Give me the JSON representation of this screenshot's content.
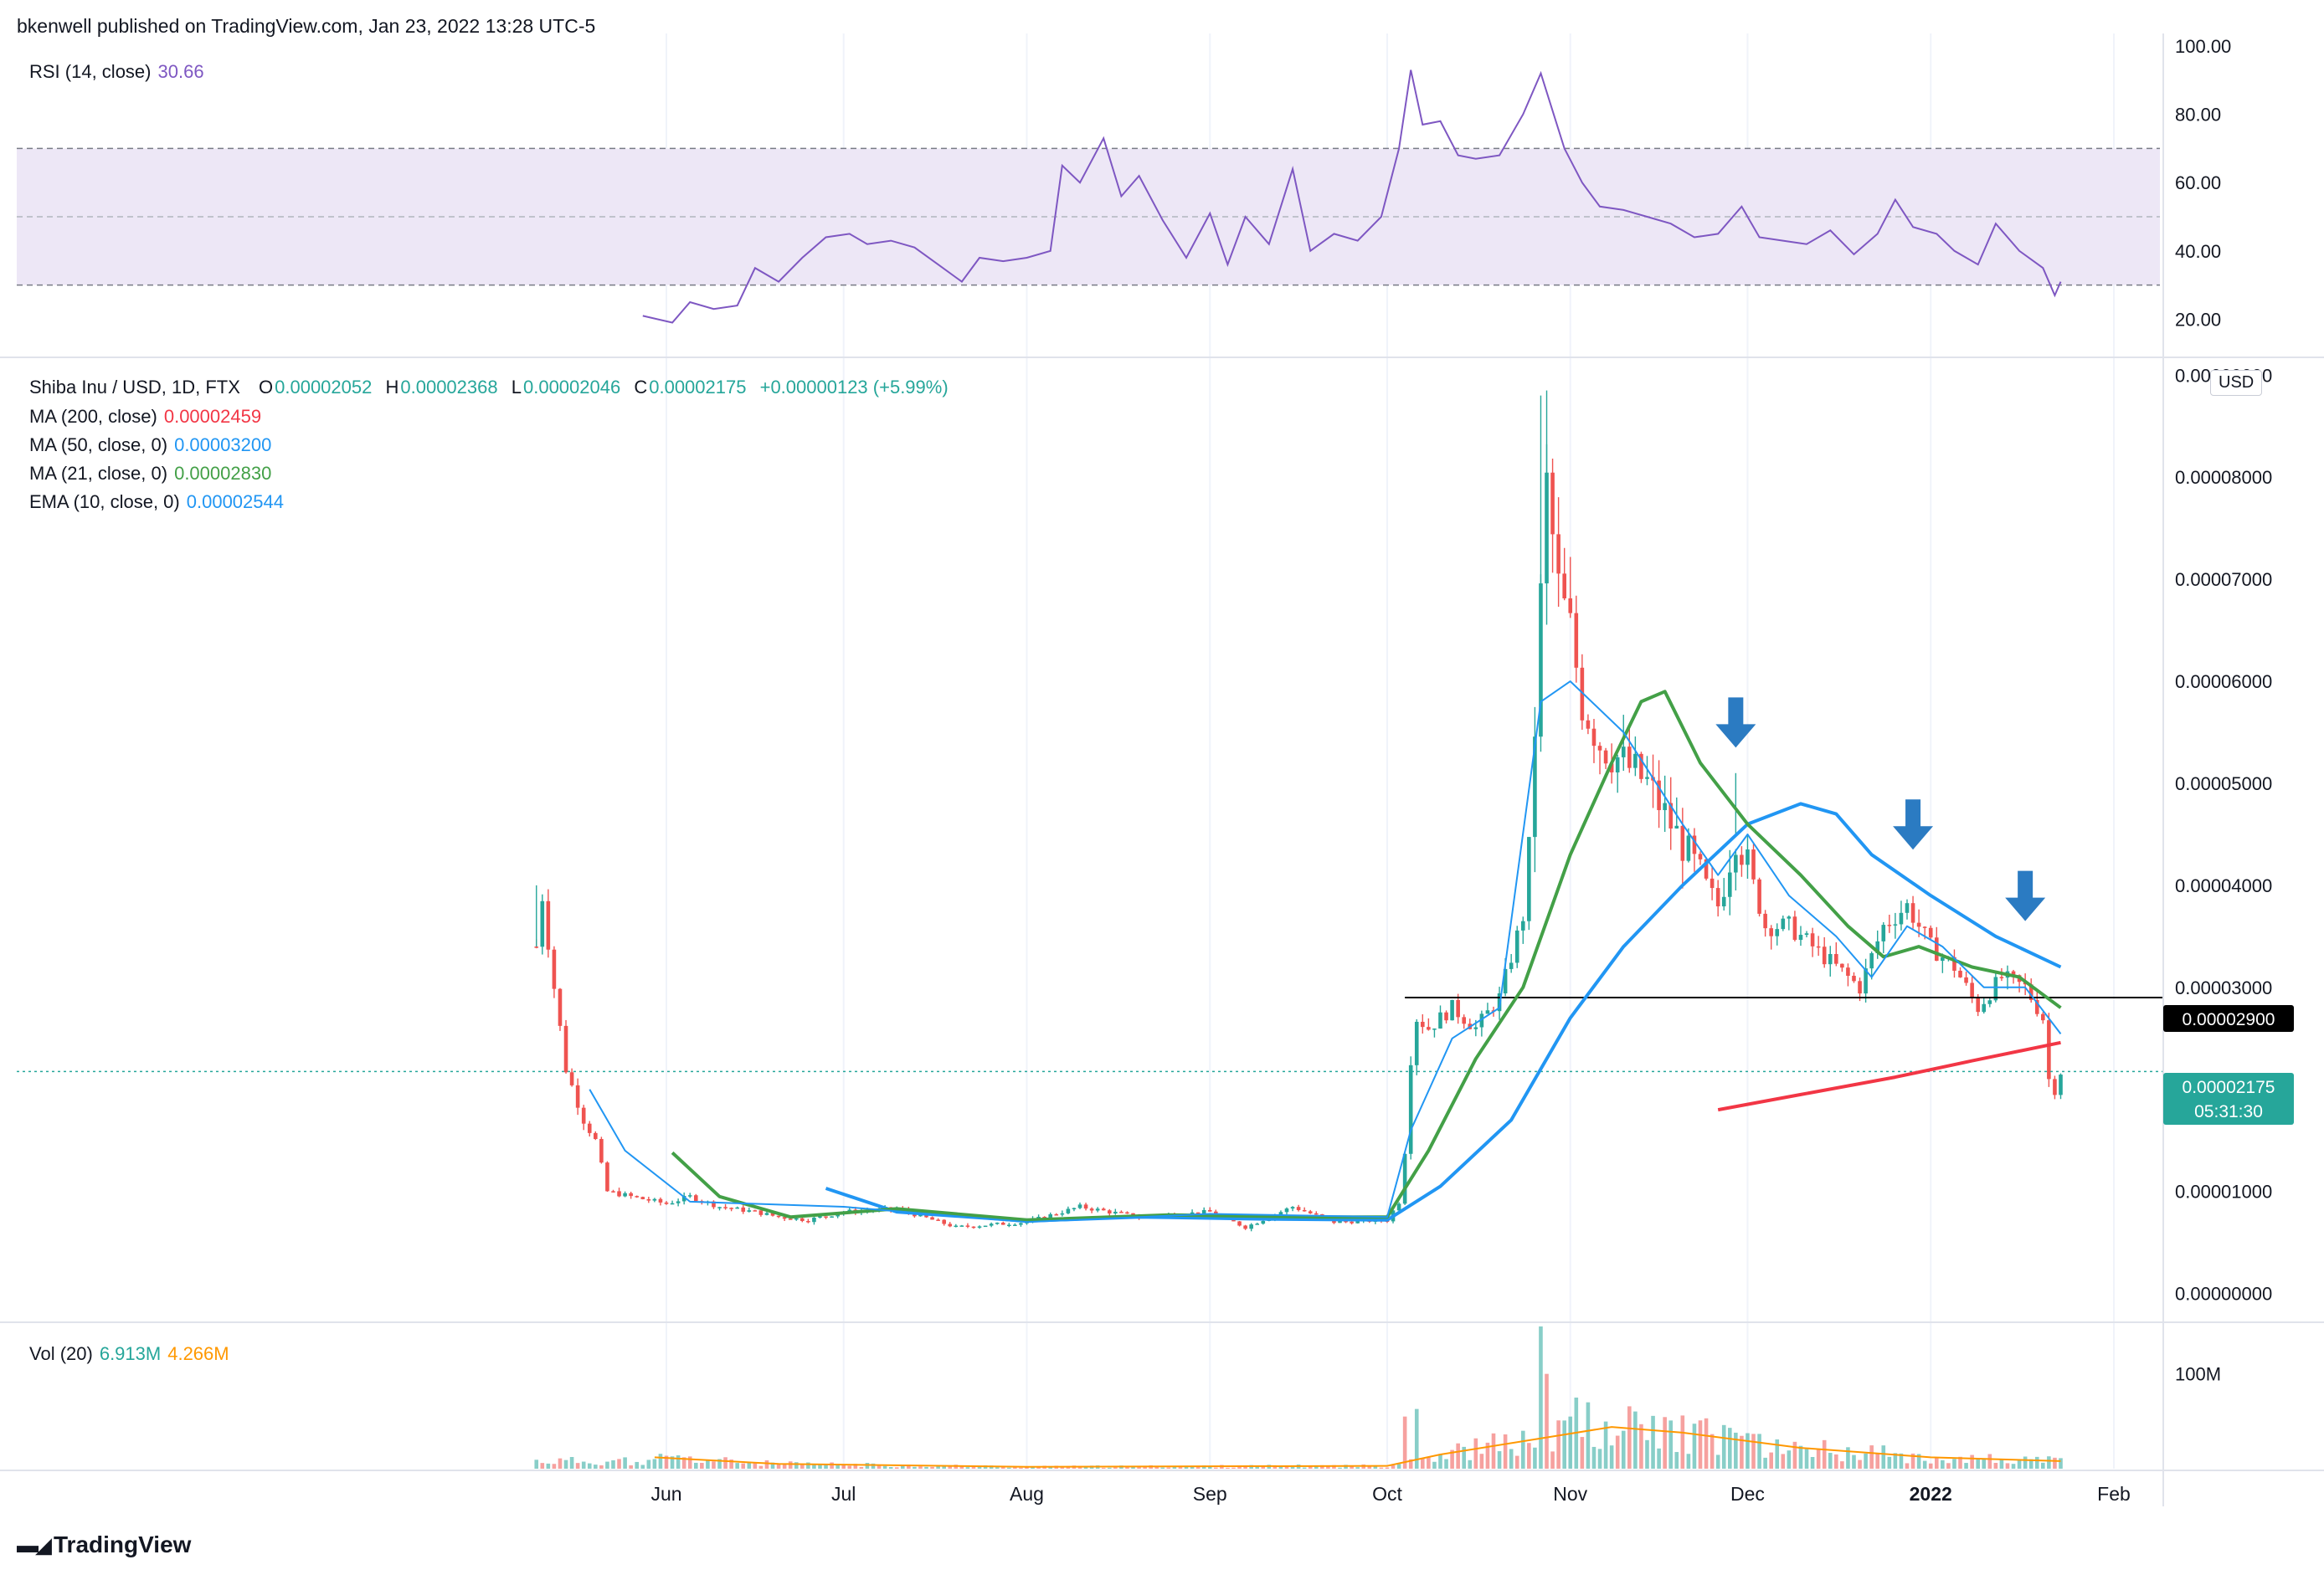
{
  "header": {
    "published": "bkenwell published on TradingView.com, Jan 23, 2022 13:28 UTC-5"
  },
  "rsi_legend": {
    "label": "RSI (14, close)",
    "value": "30.66"
  },
  "main_legend": {
    "symbol": "Shiba Inu / USD, 1D, FTX",
    "o_label": "O",
    "o": "0.00002052",
    "h_label": "H",
    "h": "0.00002368",
    "l_label": "L",
    "l": "0.00002046",
    "c_label": "C",
    "c": "0.00002175",
    "change": "+0.00000123 (+5.99%)",
    "ma200_label": "MA (200, close)",
    "ma200": "0.00002459",
    "ma50_label": "MA (50, close, 0)",
    "ma50": "0.00003200",
    "ma21_label": "MA (21, close, 0)",
    "ma21": "0.00002830",
    "ema10_label": "EMA (10, close, 0)",
    "ema10": "0.00002544"
  },
  "vol_legend": {
    "label": "Vol (20)",
    "value1": "6.913M",
    "value2": "4.266M"
  },
  "currency_button": "USD",
  "price_badge": {
    "price": "0.00002175",
    "countdown": "05:31:30"
  },
  "level_badge": "0.00002900",
  "footer": {
    "brand": "TradingView"
  },
  "colors": {
    "up": "#26a69a",
    "down": "#ef5350",
    "rsi": "#7e57c2",
    "ma200": "#f23645",
    "ma50": "#2196f3",
    "ma21": "#43a047",
    "ema10": "#2196f3",
    "vol_ma": "#ff9800",
    "arrows": "#2b7bc2",
    "rsi_band": "#ede7f6"
  },
  "chart_data": [
    {
      "type": "line",
      "title": "RSI (14, close)",
      "y_axis": {
        "ticks": [
          "100.00",
          "80.00",
          "60.00",
          "40.00",
          "20.00"
        ],
        "range": [
          13,
          100
        ]
      },
      "band": {
        "upper": 70,
        "middle": 50,
        "lower": 30
      },
      "series": [
        {
          "name": "RSI",
          "points": [
            [
              "2021-05-28",
              21
            ],
            [
              "2021-06-02",
              19
            ],
            [
              "2021-06-05",
              25
            ],
            [
              "2021-06-09",
              23
            ],
            [
              "2021-06-13",
              24
            ],
            [
              "2021-06-16",
              35
            ],
            [
              "2021-06-20",
              31
            ],
            [
              "2021-06-24",
              38
            ],
            [
              "2021-06-28",
              44
            ],
            [
              "2021-07-02",
              45
            ],
            [
              "2021-07-05",
              42
            ],
            [
              "2021-07-09",
              43
            ],
            [
              "2021-07-13",
              41
            ],
            [
              "2021-07-17",
              36
            ],
            [
              "2021-07-21",
              31
            ],
            [
              "2021-07-24",
              38
            ],
            [
              "2021-07-28",
              37
            ],
            [
              "2021-08-01",
              38
            ],
            [
              "2021-08-05",
              40
            ],
            [
              "2021-08-07",
              65
            ],
            [
              "2021-08-10",
              60
            ],
            [
              "2021-08-14",
              73
            ],
            [
              "2021-08-17",
              56
            ],
            [
              "2021-08-20",
              62
            ],
            [
              "2021-08-24",
              49
            ],
            [
              "2021-08-28",
              38
            ],
            [
              "2021-09-01",
              51
            ],
            [
              "2021-09-04",
              36
            ],
            [
              "2021-09-07",
              50
            ],
            [
              "2021-09-11",
              42
            ],
            [
              "2021-09-15",
              64
            ],
            [
              "2021-09-18",
              40
            ],
            [
              "2021-09-22",
              45
            ],
            [
              "2021-09-26",
              43
            ],
            [
              "2021-09-30",
              50
            ],
            [
              "2021-10-03",
              70
            ],
            [
              "2021-10-05",
              93
            ],
            [
              "2021-10-07",
              77
            ],
            [
              "2021-10-10",
              78
            ],
            [
              "2021-10-13",
              68
            ],
            [
              "2021-10-16",
              67
            ],
            [
              "2021-10-20",
              68
            ],
            [
              "2021-10-24",
              80
            ],
            [
              "2021-10-27",
              92
            ],
            [
              "2021-10-31",
              70
            ],
            [
              "2021-11-03",
              60
            ],
            [
              "2021-11-06",
              53
            ],
            [
              "2021-11-10",
              52
            ],
            [
              "2021-11-14",
              50
            ],
            [
              "2021-11-18",
              48
            ],
            [
              "2021-11-22",
              44
            ],
            [
              "2021-11-26",
              45
            ],
            [
              "2021-11-30",
              53
            ],
            [
              "2021-12-03",
              44
            ],
            [
              "2021-12-07",
              43
            ],
            [
              "2021-12-11",
              42
            ],
            [
              "2021-12-15",
              46
            ],
            [
              "2021-12-19",
              39
            ],
            [
              "2021-12-23",
              45
            ],
            [
              "2021-12-26",
              55
            ],
            [
              "2021-12-29",
              47
            ],
            [
              "2022-01-02",
              45
            ],
            [
              "2022-01-05",
              40
            ],
            [
              "2022-01-09",
              36
            ],
            [
              "2022-01-12",
              48
            ],
            [
              "2022-01-16",
              40
            ],
            [
              "2022-01-20",
              35
            ],
            [
              "2022-01-22",
              27
            ],
            [
              "2022-01-23",
              31
            ]
          ]
        }
      ]
    },
    {
      "type": "candlestick",
      "title": "Shiba Inu / USD, 1D, FTX",
      "y_axis": {
        "ticks": [
          "0.00009000",
          "0.00008000",
          "0.00007000",
          "0.00006000",
          "0.00005000",
          "0.00004000",
          "0.00003000",
          "0.00001000",
          "0.00000000"
        ],
        "range": [
          -2e-06,
          9.15e-05
        ]
      },
      "x_axis": {
        "ticks": [
          "Jun",
          "Jul",
          "Aug",
          "Sep",
          "Oct",
          "Nov",
          "Dec",
          "2022",
          "Feb"
        ]
      },
      "horizontal_line": 2.9e-05,
      "price_path": [
        [
          "2021-05-10",
          3.4e-05
        ],
        [
          "2021-05-11",
          3.9e-05
        ],
        [
          "2021-05-13",
          3e-05
        ],
        [
          "2021-05-15",
          2.2e-05
        ],
        [
          "2021-05-18",
          1.7e-05
        ],
        [
          "2021-05-20",
          1.5e-05
        ],
        [
          "2021-05-22",
          1e-05
        ],
        [
          "2021-05-26",
          9.5e-06
        ],
        [
          "2021-06-01",
          8.8e-06
        ],
        [
          "2021-06-05",
          9.5e-06
        ],
        [
          "2021-06-10",
          8.5e-06
        ],
        [
          "2021-06-16",
          8e-06
        ],
        [
          "2021-06-20",
          7.5e-06
        ],
        [
          "2021-06-25",
          7.2e-06
        ],
        [
          "2021-07-01",
          8e-06
        ],
        [
          "2021-07-10",
          8.3e-06
        ],
        [
          "2021-07-20",
          6.5e-06
        ],
        [
          "2021-08-01",
          7e-06
        ],
        [
          "2021-08-10",
          8.5e-06
        ],
        [
          "2021-08-20",
          7.5e-06
        ],
        [
          "2021-09-01",
          8e-06
        ],
        [
          "2021-09-07",
          6.5e-06
        ],
        [
          "2021-09-15",
          8.5e-06
        ],
        [
          "2021-09-22",
          7e-06
        ],
        [
          "2021-10-01",
          7.2e-06
        ],
        [
          "2021-10-03",
          9e-06
        ],
        [
          "2021-10-04",
          1.4e-05
        ],
        [
          "2021-10-05",
          2.3e-05
        ],
        [
          "2021-10-06",
          2.7e-05
        ],
        [
          "2021-10-08",
          2.6e-05
        ],
        [
          "2021-10-12",
          2.8e-05
        ],
        [
          "2021-10-16",
          2.6e-05
        ],
        [
          "2021-10-20",
          2.9e-05
        ],
        [
          "2021-10-24",
          3.7e-05
        ],
        [
          "2021-10-25",
          4.3e-05
        ],
        [
          "2021-10-27",
          6.8e-05
        ],
        [
          "2021-10-28",
          7.9e-05
        ],
        [
          "2021-10-30",
          6.9e-05
        ],
        [
          "2021-11-01",
          6.5e-05
        ],
        [
          "2021-11-03",
          5.8e-05
        ],
        [
          "2021-11-06",
          5.4e-05
        ],
        [
          "2021-11-10",
          5.2e-05
        ],
        [
          "2021-11-14",
          5e-05
        ],
        [
          "2021-11-18",
          4.6e-05
        ],
        [
          "2021-11-22",
          4.2e-05
        ],
        [
          "2021-11-26",
          3.8e-05
        ],
        [
          "2021-11-29",
          4.5e-05
        ],
        [
          "2021-12-01",
          4.2e-05
        ],
        [
          "2021-12-04",
          3.6e-05
        ],
        [
          "2021-12-08",
          3.6e-05
        ],
        [
          "2021-12-12",
          3.4e-05
        ],
        [
          "2021-12-16",
          3.2e-05
        ],
        [
          "2021-12-20",
          3e-05
        ],
        [
          "2021-12-24",
          3.6e-05
        ],
        [
          "2021-12-28",
          3.8e-05
        ],
        [
          "2022-01-01",
          3.4e-05
        ],
        [
          "2022-01-05",
          3.2e-05
        ],
        [
          "2022-01-09",
          2.8e-05
        ],
        [
          "2022-01-13",
          3.1e-05
        ],
        [
          "2022-01-17",
          3e-05
        ],
        [
          "2022-01-20",
          2.7e-05
        ],
        [
          "2022-01-21",
          2.1e-05
        ],
        [
          "2022-01-22",
          2e-05
        ],
        [
          "2022-01-23",
          2.175e-05
        ]
      ],
      "series": [
        {
          "name": "MA (200, close)",
          "points": [
            [
              "2021-11-26",
              1.8e-05
            ],
            [
              "2021-12-10",
              1.95e-05
            ],
            [
              "2021-12-26",
              2.12e-05
            ],
            [
              "2022-01-08",
              2.28e-05
            ],
            [
              "2022-01-23",
              2.459e-05
            ]
          ]
        },
        {
          "name": "MA (50, close, 0)",
          "points": [
            [
              "2021-06-28",
              1.03e-05
            ],
            [
              "2021-07-10",
              8e-06
            ],
            [
              "2021-08-01",
              7.1e-06
            ],
            [
              "2021-08-20",
              7.5e-06
            ],
            [
              "2021-09-10",
              7.3e-06
            ],
            [
              "2021-10-01",
              7.2e-06
            ],
            [
              "2021-10-10",
              1.05e-05
            ],
            [
              "2021-10-22",
              1.7e-05
            ],
            [
              "2021-11-01",
              2.7e-05
            ],
            [
              "2021-11-10",
              3.4e-05
            ],
            [
              "2021-11-20",
              4e-05
            ],
            [
              "2021-12-01",
              4.6e-05
            ],
            [
              "2021-12-10",
              4.8e-05
            ],
            [
              "2021-12-16",
              4.7e-05
            ],
            [
              "2021-12-22",
              4.3e-05
            ],
            [
              "2022-01-01",
              3.9e-05
            ],
            [
              "2022-01-12",
              3.5e-05
            ],
            [
              "2022-01-23",
              3.2e-05
            ]
          ]
        },
        {
          "name": "MA (21, close, 0)",
          "points": [
            [
              "2021-06-02",
              1.38e-05
            ],
            [
              "2021-06-10",
              9.5e-06
            ],
            [
              "2021-06-22",
              7.5e-06
            ],
            [
              "2021-07-10",
              8.3e-06
            ],
            [
              "2021-08-01",
              7.2e-06
            ],
            [
              "2021-08-25",
              7.7e-06
            ],
            [
              "2021-09-20",
              7.5e-06
            ],
            [
              "2021-10-01",
              7.5e-06
            ],
            [
              "2021-10-08",
              1.4e-05
            ],
            [
              "2021-10-16",
              2.3e-05
            ],
            [
              "2021-10-24",
              3e-05
            ],
            [
              "2021-11-01",
              4.3e-05
            ],
            [
              "2021-11-08",
              5.2e-05
            ],
            [
              "2021-11-13",
              5.8e-05
            ],
            [
              "2021-11-17",
              5.9e-05
            ],
            [
              "2021-11-23",
              5.2e-05
            ],
            [
              "2021-12-01",
              4.6e-05
            ],
            [
              "2021-12-10",
              4.1e-05
            ],
            [
              "2021-12-18",
              3.6e-05
            ],
            [
              "2021-12-24",
              3.3e-05
            ],
            [
              "2021-12-30",
              3.4e-05
            ],
            [
              "2022-01-08",
              3.2e-05
            ],
            [
              "2022-01-16",
              3.1e-05
            ],
            [
              "2022-01-23",
              2.8e-05
            ]
          ]
        },
        {
          "name": "EMA (10, close, 0)",
          "points": [
            [
              "2021-05-19",
              2e-05
            ],
            [
              "2021-05-25",
              1.4e-05
            ],
            [
              "2021-06-05",
              9e-06
            ],
            [
              "2021-07-01",
              8.5e-06
            ],
            [
              "2021-08-01",
              7e-06
            ],
            [
              "2021-09-01",
              7.8e-06
            ],
            [
              "2021-10-01",
              7.5e-06
            ],
            [
              "2021-10-05",
              1.6e-05
            ],
            [
              "2021-10-12",
              2.5e-05
            ],
            [
              "2021-10-20",
              2.8e-05
            ],
            [
              "2021-10-27",
              5.8e-05
            ],
            [
              "2021-11-01",
              6e-05
            ],
            [
              "2021-11-10",
              5.5e-05
            ],
            [
              "2021-11-20",
              4.6e-05
            ],
            [
              "2021-11-26",
              4.1e-05
            ],
            [
              "2021-12-01",
              4.5e-05
            ],
            [
              "2021-12-08",
              3.9e-05
            ],
            [
              "2021-12-16",
              3.5e-05
            ],
            [
              "2021-12-22",
              3.1e-05
            ],
            [
              "2021-12-28",
              3.6e-05
            ],
            [
              "2022-01-03",
              3.4e-05
            ],
            [
              "2022-01-10",
              3e-05
            ],
            [
              "2022-01-17",
              3e-05
            ],
            [
              "2022-01-23",
              2.544e-05
            ]
          ]
        }
      ],
      "annotations": [
        {
          "type": "down-arrow",
          "date": "2021-11-29",
          "price": 5.35e-05
        },
        {
          "type": "down-arrow",
          "date": "2021-12-29",
          "price": 4.35e-05
        },
        {
          "type": "down-arrow",
          "date": "2022-01-17",
          "price": 3.65e-05
        }
      ]
    },
    {
      "type": "bar",
      "title": "Vol (20)",
      "y_axis": {
        "ticks": [
          "100M"
        ],
        "range": [
          0,
          150
        ]
      },
      "volume_spikes": [
        [
          "2021-05-25",
          12
        ],
        [
          "2021-06-02",
          13
        ],
        [
          "2021-10-04",
          55
        ],
        [
          "2021-10-06",
          63
        ],
        [
          "2021-10-24",
          40
        ],
        [
          "2021-10-27",
          150
        ],
        [
          "2021-10-28",
          100
        ],
        [
          "2021-11-02",
          75
        ],
        [
          "2021-11-04",
          70
        ],
        [
          "2021-11-10",
          40
        ],
        [
          "2021-11-29",
          38
        ]
      ],
      "series": [
        {
          "name": "Vol MA",
          "points": [
            [
              "2021-05-30",
              12
            ],
            [
              "2021-06-20",
              5
            ],
            [
              "2021-08-01",
              2
            ],
            [
              "2021-10-01",
              3
            ],
            [
              "2021-10-10",
              15
            ],
            [
              "2021-10-28",
              33
            ],
            [
              "2021-11-08",
              44
            ],
            [
              "2021-11-20",
              38
            ],
            [
              "2021-12-10",
              22
            ],
            [
              "2022-01-01",
              12
            ],
            [
              "2022-01-23",
              8
            ]
          ]
        }
      ]
    }
  ]
}
